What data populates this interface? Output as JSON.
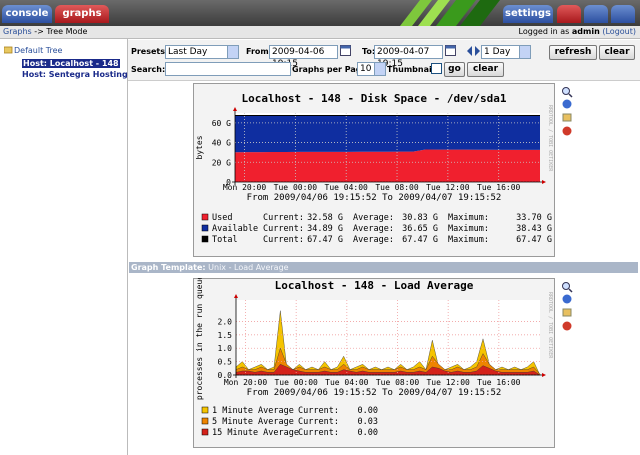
{
  "tabs": {
    "console": "console",
    "graphs": "graphs",
    "settings": "settings"
  },
  "breadcrumb": {
    "root": "Graphs",
    "sep": "->",
    "current": "Tree Mode"
  },
  "login": {
    "prefix": "Logged in as",
    "user": "admin",
    "logout": "(Logout)"
  },
  "tree": {
    "root": "Default Tree",
    "hosts": [
      "Host: Localhost - 148",
      "Host: Sentegra Hosting -"
    ]
  },
  "filters": {
    "presets_label": "Presets:",
    "preset": "Last Day",
    "from_label": "From:",
    "from": "2009-04-06 19:15",
    "to_label": "To:",
    "to": "2009-04-07 19:15",
    "span": "1 Day",
    "refresh": "refresh",
    "clear": "clear",
    "search_label": "Search:",
    "gpp_label": "Graphs per Page:",
    "gpp": "10",
    "thumbs_label": "Thumbnails:",
    "go": "go",
    "clear2": "clear"
  },
  "graph_template": {
    "label": "Graph Template:",
    "name": "Unix - Load Average"
  },
  "graphs": [
    {
      "type": "area",
      "stacked": true,
      "title": "Localhost - 148 - Disk Space - /dev/sda1",
      "ylabel": "bytes",
      "watermark": "RRDTOOL / TOBI OETIKER",
      "range_text": "From 2009/04/06 19:15:52 To 2009/04/07 19:15:52",
      "grid": true,
      "grid_color": "#c8c8c8",
      "ylim": [
        0,
        70
      ],
      "yticks": [
        {
          "value": 0,
          "label": "0"
        },
        {
          "value": 20,
          "label": "20 G"
        },
        {
          "value": 40,
          "label": "40 G"
        },
        {
          "value": 60,
          "label": "60 G"
        }
      ],
      "xlim": [
        0,
        24
      ],
      "xticks": [
        {
          "value": 0.75,
          "label": "Mon 20:00"
        },
        {
          "value": 4.75,
          "label": "Tue 00:00"
        },
        {
          "value": 8.75,
          "label": "Tue 04:00"
        },
        {
          "value": 12.75,
          "label": "Tue 08:00"
        },
        {
          "value": 16.75,
          "label": "Tue 12:00"
        },
        {
          "value": 20.75,
          "label": "Tue 16:00"
        }
      ],
      "x": [
        0,
        1,
        2,
        3,
        4,
        5,
        6,
        7,
        8,
        9,
        10,
        11,
        12,
        13,
        14,
        15,
        16,
        17,
        18,
        19,
        20,
        21,
        22,
        23,
        24
      ],
      "series": [
        {
          "name": "Used",
          "kind": "area",
          "color": "#f0202e",
          "stats": [
            "Current:",
            "32.58 G",
            "Average:",
            "30.83 G",
            "Maximum:",
            "33.70 G"
          ],
          "values": [
            30.2,
            30.3,
            30.3,
            30.4,
            30.4,
            30.5,
            30.5,
            30.5,
            30.6,
            30.6,
            30.7,
            30.7,
            30.7,
            30.8,
            30.8,
            33.0,
            32.9,
            32.8,
            32.8,
            32.7,
            32.7,
            32.6,
            32.6,
            32.6,
            32.58
          ]
        },
        {
          "name": "Available",
          "kind": "area",
          "color": "#0f2ea0",
          "stats": [
            "Current:",
            "34.89 G",
            "Average:",
            "36.65 G",
            "Maximum:",
            "38.43 G"
          ],
          "values": [
            37.27,
            37.17,
            37.17,
            37.07,
            37.07,
            36.97,
            36.97,
            36.97,
            36.87,
            36.87,
            36.77,
            36.77,
            36.77,
            36.67,
            36.67,
            34.47,
            34.57,
            34.67,
            34.67,
            34.77,
            34.77,
            34.87,
            34.87,
            34.87,
            34.89
          ]
        },
        {
          "name": "Total",
          "kind": "line",
          "color": "#000000",
          "stats": [
            "Current:",
            "67.47 G",
            "Average:",
            "67.47 G",
            "Maximum:",
            "67.47 G"
          ],
          "values": [
            67.47,
            67.47,
            67.47,
            67.47,
            67.47,
            67.47,
            67.47,
            67.47,
            67.47,
            67.47,
            67.47,
            67.47,
            67.47,
            67.47,
            67.47,
            67.47,
            67.47,
            67.47,
            67.47,
            67.47,
            67.47,
            67.47,
            67.47,
            67.47,
            67.47
          ]
        }
      ]
    },
    {
      "type": "area",
      "stacked": false,
      "title": "Localhost - 148 - Load Average",
      "ylabel": "processes in the run queue",
      "watermark": "RRDTOOL / TOBI OETIKER",
      "range_text": "From 2009/04/06 19:15:52 To 2009/04/07 19:15:52",
      "grid": true,
      "grid_color": "#f0a0a0",
      "ylim": [
        0,
        2.8
      ],
      "yticks": [
        {
          "value": 0,
          "label": "0.0"
        },
        0.5,
        {
          "value": 1,
          "label": "1.0"
        },
        1.5,
        {
          "value": 2,
          "label": "2.0"
        }
      ],
      "xlim": [
        0,
        24
      ],
      "xticks": [
        {
          "value": 0.75,
          "label": "Mon 20:00"
        },
        {
          "value": 4.75,
          "label": "Tue 00:00"
        },
        {
          "value": 8.75,
          "label": "Tue 04:00"
        },
        {
          "value": 12.75,
          "label": "Tue 08:00"
        },
        {
          "value": 16.75,
          "label": "Tue 12:00"
        },
        {
          "value": 20.75,
          "label": "Tue 16:00"
        }
      ],
      "x": [
        0,
        0.5,
        1,
        1.5,
        2,
        2.5,
        3,
        3.5,
        4,
        4.5,
        5,
        5.5,
        6,
        6.5,
        7,
        7.5,
        8,
        8.5,
        9,
        9.5,
        10,
        10.5,
        11,
        11.5,
        12,
        12.5,
        13,
        13.5,
        14,
        14.5,
        15,
        15.5,
        16,
        16.5,
        17,
        17.5,
        18,
        18.5,
        19,
        19.5,
        20,
        20.5,
        21,
        21.5,
        22,
        22.5,
        23,
        23.5,
        24
      ],
      "series": [
        {
          "name": "1 Minute Average",
          "kind": "area",
          "color": "#f5c400",
          "stats": [
            "Current:",
            "0.00"
          ],
          "values": [
            0.3,
            0.5,
            0.2,
            0.3,
            0.4,
            0.2,
            0.3,
            2.4,
            0.3,
            0.2,
            0.4,
            0.2,
            0.3,
            0.2,
            0.5,
            0.2,
            0.3,
            0.7,
            0.2,
            0.3,
            0.4,
            0.2,
            0.3,
            0.2,
            0.3,
            0.2,
            0.4,
            0.2,
            0.3,
            0.5,
            0.2,
            1.3,
            0.3,
            0.2,
            0.3,
            0.4,
            0.2,
            0.3,
            0.5,
            1.35,
            0.4,
            0.2,
            0.3,
            0.2,
            0.3,
            0.2,
            0.3,
            0.5,
            0.0
          ]
        },
        {
          "name": "5 Minute Average",
          "kind": "area",
          "color": "#ee8400",
          "stats": [
            "Current:",
            "0.03"
          ],
          "values": [
            0.2,
            0.3,
            0.2,
            0.2,
            0.3,
            0.2,
            0.2,
            1.0,
            0.4,
            0.2,
            0.3,
            0.2,
            0.2,
            0.2,
            0.3,
            0.2,
            0.2,
            0.4,
            0.2,
            0.2,
            0.3,
            0.2,
            0.2,
            0.2,
            0.2,
            0.2,
            0.3,
            0.2,
            0.2,
            0.3,
            0.2,
            0.7,
            0.4,
            0.2,
            0.2,
            0.3,
            0.2,
            0.2,
            0.3,
            0.8,
            0.4,
            0.2,
            0.2,
            0.2,
            0.2,
            0.2,
            0.2,
            0.3,
            0.03
          ]
        },
        {
          "name": "15 Minute Average",
          "kind": "area",
          "color": "#d4221a",
          "stats": [
            "Current:",
            "0.00"
          ],
          "values": [
            0.1,
            0.15,
            0.15,
            0.1,
            0.15,
            0.1,
            0.1,
            0.4,
            0.3,
            0.2,
            0.15,
            0.1,
            0.1,
            0.1,
            0.15,
            0.1,
            0.1,
            0.2,
            0.15,
            0.1,
            0.15,
            0.1,
            0.1,
            0.1,
            0.1,
            0.1,
            0.15,
            0.1,
            0.1,
            0.15,
            0.1,
            0.3,
            0.25,
            0.15,
            0.1,
            0.15,
            0.1,
            0.1,
            0.15,
            0.35,
            0.25,
            0.15,
            0.1,
            0.1,
            0.1,
            0.1,
            0.1,
            0.15,
            0.0
          ]
        }
      ]
    }
  ]
}
